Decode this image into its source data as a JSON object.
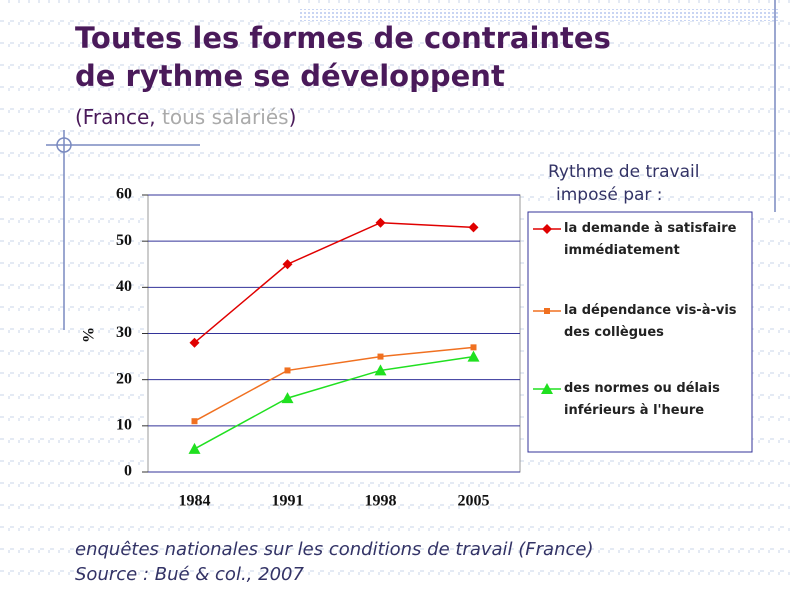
{
  "chart_data": {
    "type": "line",
    "title": "Toutes les formes de contraintes de rythme se développent",
    "subtitle": [
      "(France, ",
      "tous salariés",
      ")"
    ],
    "y_label": "%",
    "legend_title": "Rythme de travail imposé par :",
    "categories": [
      "1984",
      "1991",
      "1998",
      "2005"
    ],
    "series": [
      {
        "name": "la demande à satisfaire immédiatement",
        "color": "#e00000",
        "marker": "diamond",
        "values": [
          28,
          45,
          54,
          53
        ]
      },
      {
        "name": "la dépendance vis-à-vis des collègues",
        "color": "#f07020",
        "marker": "square",
        "values": [
          11,
          22,
          25,
          27
        ]
      },
      {
        "name": "des normes ou délais inférieurs à l'heure",
        "color": "#20e020",
        "marker": "triangle",
        "values": [
          5,
          16,
          22,
          25
        ]
      }
    ],
    "ylim": [
      0,
      60
    ],
    "yticks": [
      0,
      10,
      20,
      30,
      40,
      50,
      60
    ],
    "grid": true,
    "legend": "right",
    "notes": [
      "enquêtes nationales sur les conditions de travail (France)",
      "Source : Bué & col., 2007"
    ]
  }
}
